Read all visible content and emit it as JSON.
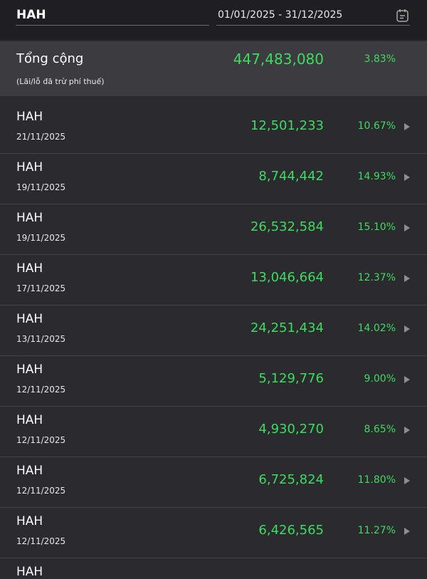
{
  "header": {
    "search": "HAH",
    "date_range": "01/01/2025 - 31/12/2025"
  },
  "total": {
    "label": "Tổng cộng",
    "note": "(Lãi/lỗ đã trừ phí thuế)",
    "value": "447,483,080",
    "percent": "3.83%"
  },
  "rows": [
    {
      "symbol": "HAH",
      "date": "21/11/2025",
      "value": "12,501,233",
      "percent": "10.67%"
    },
    {
      "symbol": "HAH",
      "date": "19/11/2025",
      "value": "8,744,442",
      "percent": "14.93%"
    },
    {
      "symbol": "HAH",
      "date": "19/11/2025",
      "value": "26,532,584",
      "percent": "15.10%"
    },
    {
      "symbol": "HAH",
      "date": "17/11/2025",
      "value": "13,046,664",
      "percent": "12.37%"
    },
    {
      "symbol": "HAH",
      "date": "13/11/2025",
      "value": "24,251,434",
      "percent": "14.02%"
    },
    {
      "symbol": "HAH",
      "date": "12/11/2025",
      "value": "5,129,776",
      "percent": "9.00%"
    },
    {
      "symbol": "HAH",
      "date": "12/11/2025",
      "value": "4,930,270",
      "percent": "8.65%"
    },
    {
      "symbol": "HAH",
      "date": "12/11/2025",
      "value": "6,725,824",
      "percent": "11.80%"
    },
    {
      "symbol": "HAH",
      "date": "12/11/2025",
      "value": "6,426,565",
      "percent": "11.27%"
    },
    {
      "symbol": "HAH"
    }
  ]
}
